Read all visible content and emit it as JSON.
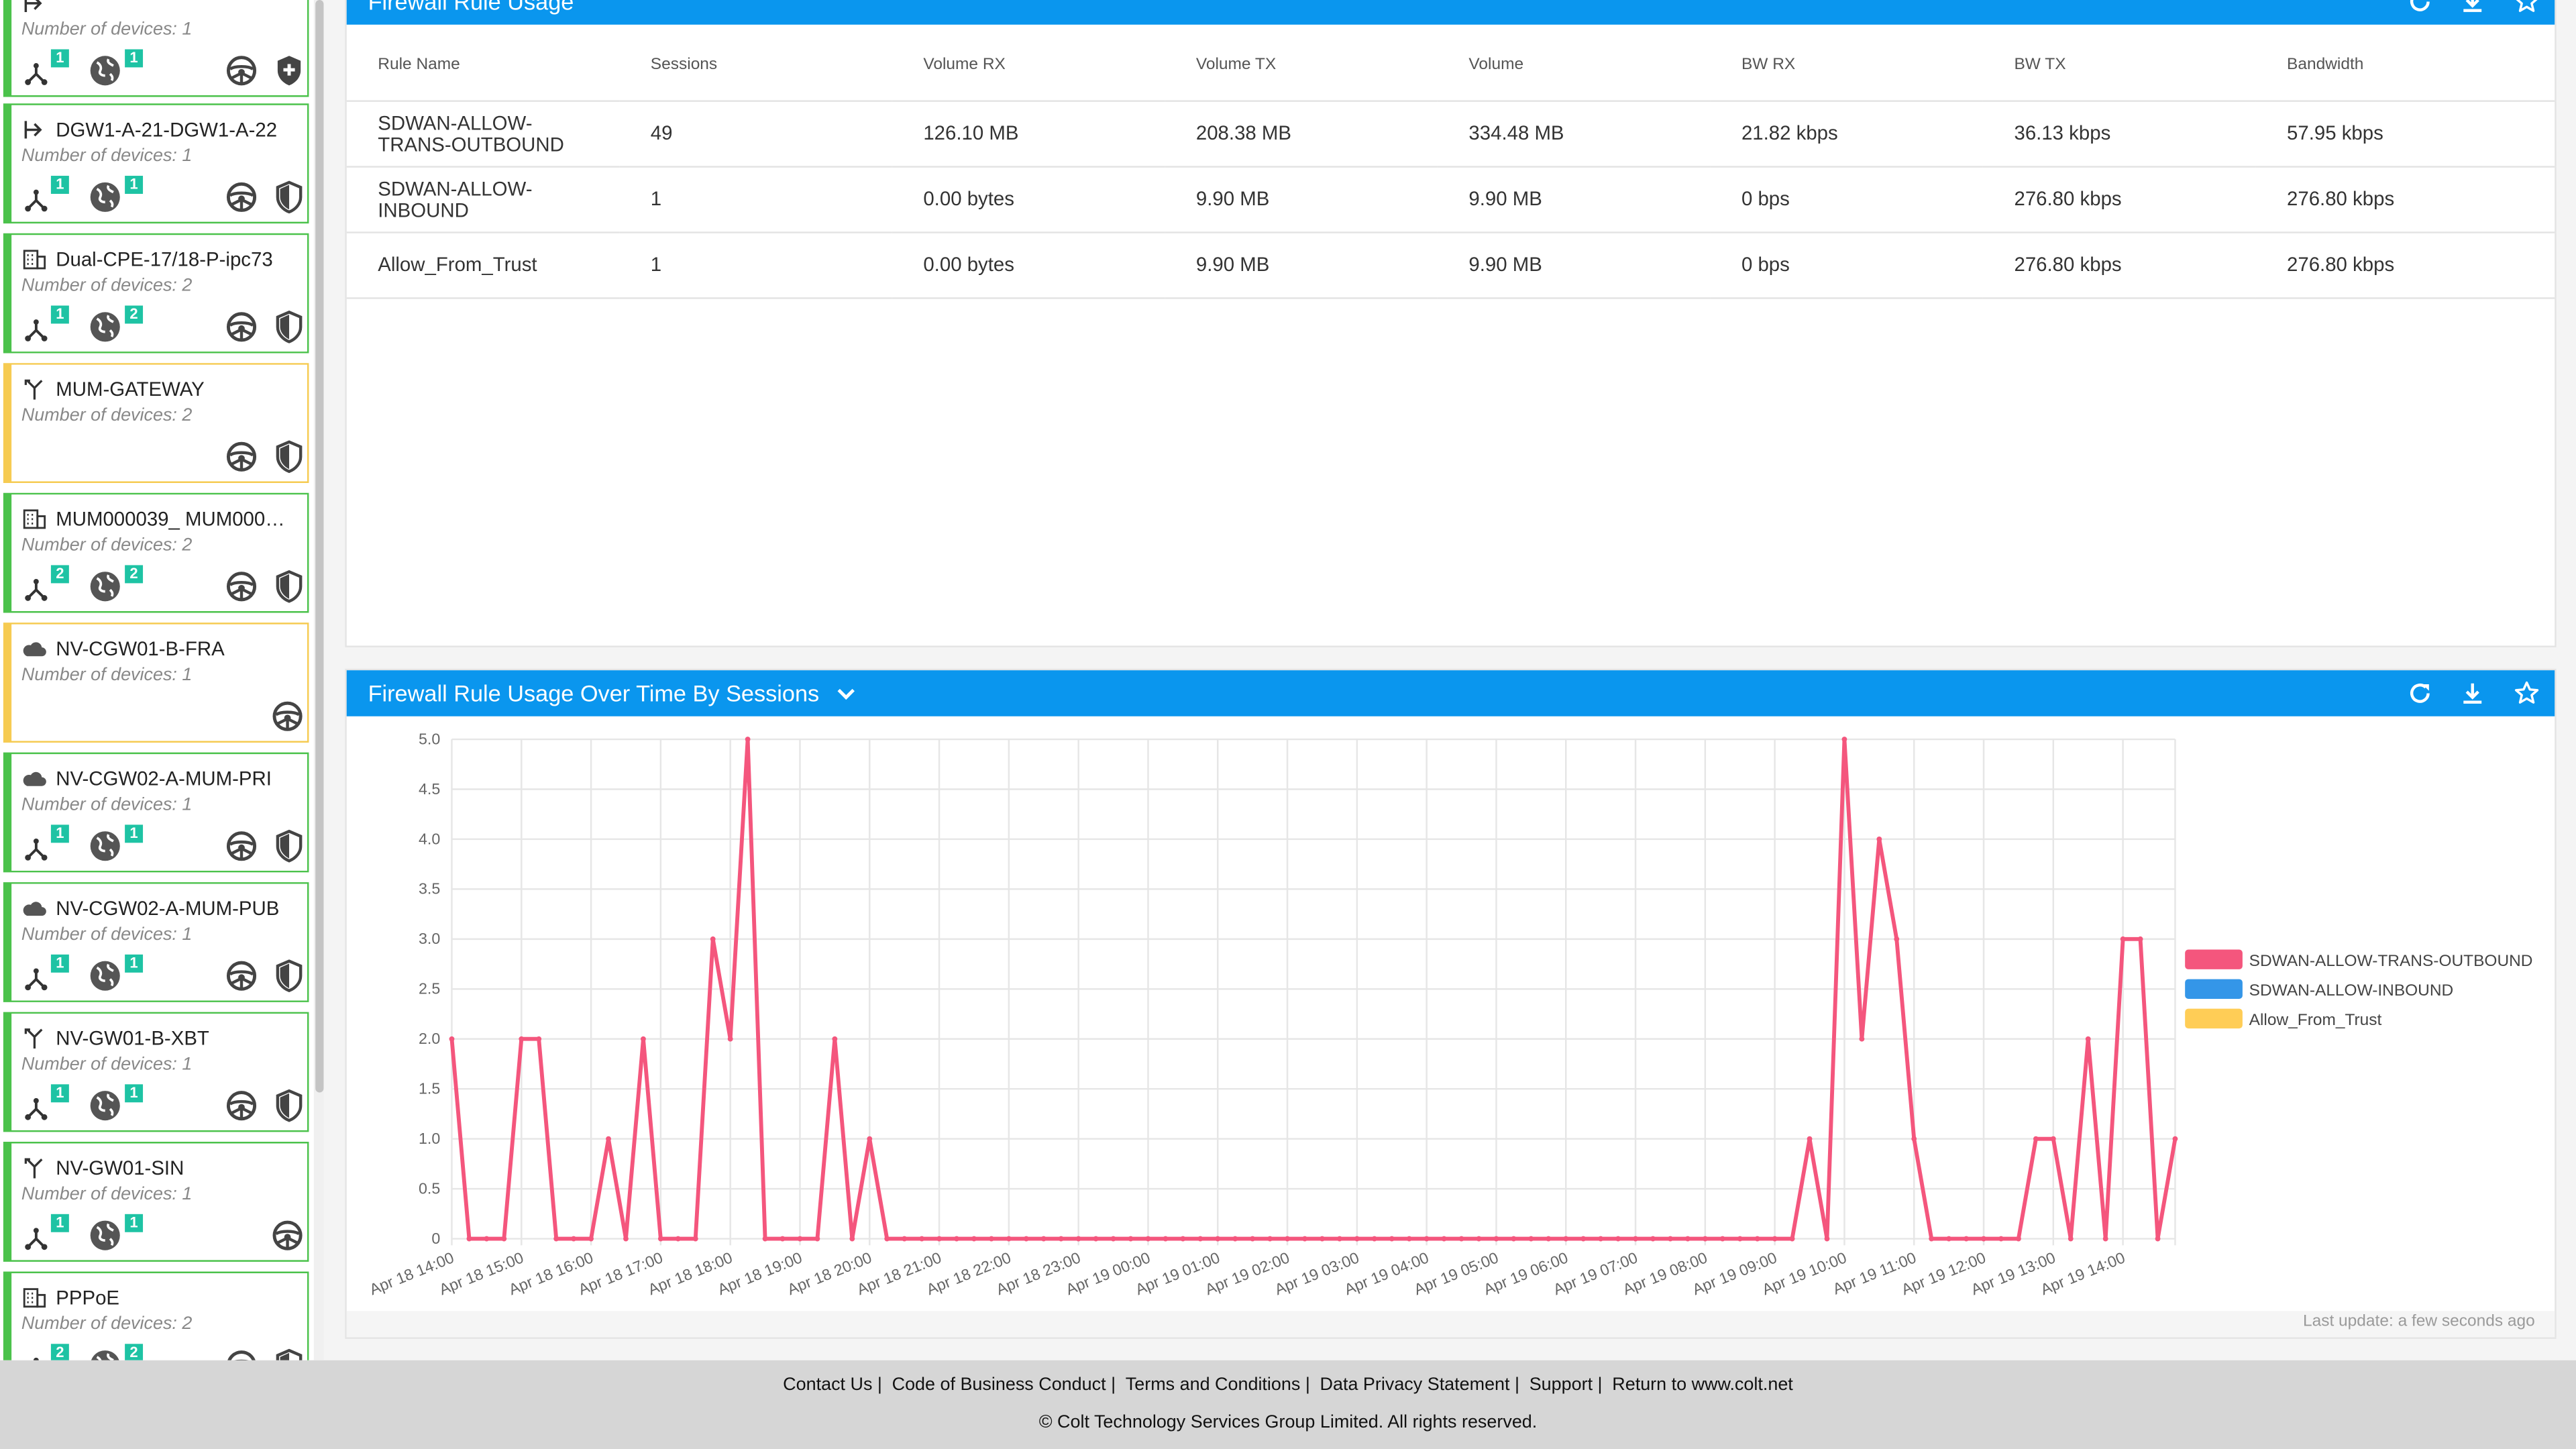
{
  "sidebar": {
    "cards": [
      {
        "title": "",
        "devices": "Number of devices: 1",
        "type": "gateway",
        "status": "green",
        "badges": [
          "1",
          "1"
        ],
        "end_icons": [
          "steering-wheel-icon",
          "shield-plus-icon"
        ]
      },
      {
        "title": "DGW1-A-21-DGW1-A-22",
        "devices": "Number of devices: 1",
        "type": "gateway-arrow",
        "status": "green",
        "badges": [
          "1",
          "1"
        ],
        "end_icons": [
          "steering-wheel-icon",
          "shield-icon"
        ]
      },
      {
        "title": "Dual-CPE-17/18-P-ipc73",
        "devices": "Number of devices: 2",
        "type": "building",
        "status": "green",
        "badges": [
          "1",
          "2"
        ],
        "end_icons": [
          "steering-wheel-icon",
          "shield-icon"
        ]
      },
      {
        "title": "MUM-GATEWAY",
        "devices": "Number of devices: 2",
        "type": "merge",
        "status": "yellow",
        "badges": [],
        "end_icons": [
          "steering-wheel-icon",
          "shield-icon"
        ]
      },
      {
        "title": "MUM000039_ MUM000…",
        "devices": "Number of devices: 2",
        "type": "building",
        "status": "green",
        "badges": [
          "2",
          "2"
        ],
        "end_icons": [
          "steering-wheel-icon",
          "shield-icon"
        ]
      },
      {
        "title": "NV-CGW01-B-FRA",
        "devices": "Number of devices: 1",
        "type": "cloud",
        "status": "yellow",
        "badges": [],
        "end_icons": [
          "steering-wheel-icon"
        ]
      },
      {
        "title": "NV-CGW02-A-MUM-PRI",
        "devices": "Number of devices: 1",
        "type": "cloud",
        "status": "green",
        "badges": [
          "1",
          "1"
        ],
        "end_icons": [
          "steering-wheel-icon",
          "shield-icon"
        ]
      },
      {
        "title": "NV-CGW02-A-MUM-PUB",
        "devices": "Number of devices: 1",
        "type": "cloud",
        "status": "green",
        "badges": [
          "1",
          "1"
        ],
        "end_icons": [
          "steering-wheel-icon",
          "shield-icon"
        ]
      },
      {
        "title": "NV-GW01-B-XBT",
        "devices": "Number of devices: 1",
        "type": "merge",
        "status": "green",
        "badges": [
          "1",
          "1"
        ],
        "end_icons": [
          "steering-wheel-icon",
          "shield-icon"
        ]
      },
      {
        "title": "NV-GW01-SIN",
        "devices": "Number of devices: 1",
        "type": "merge",
        "status": "green",
        "badges": [
          "1",
          "1"
        ],
        "end_icons": [
          "steering-wheel-icon"
        ]
      },
      {
        "title": "PPPoE",
        "devices": "Number of devices: 2",
        "type": "building",
        "status": "green",
        "badges": [
          "2",
          "2"
        ],
        "end_icons": [
          "steering-wheel-icon",
          "shield-icon"
        ]
      }
    ]
  },
  "usage_panel": {
    "title": "Firewall Rule Usage",
    "columns": [
      "Rule Name",
      "Sessions",
      "Volume RX",
      "Volume TX",
      "Volume",
      "BW RX",
      "BW TX",
      "Bandwidth"
    ],
    "rows": [
      [
        "SDWAN-ALLOW-\nTRANS-OUTBOUND",
        "49",
        "126.10 MB",
        "208.38 MB",
        "334.48 MB",
        "21.82 kbps",
        "36.13 kbps",
        "57.95 kbps"
      ],
      [
        "SDWAN-ALLOW-\nINBOUND",
        "1",
        "0.00 bytes",
        "9.90 MB",
        "9.90 MB",
        "0 bps",
        "276.80 kbps",
        "276.80 kbps"
      ],
      [
        "Allow_From_Trust",
        "1",
        "0.00 bytes",
        "9.90 MB",
        "9.90 MB",
        "0 bps",
        "276.80 kbps",
        "276.80 kbps"
      ]
    ]
  },
  "chart_panel": {
    "title": "Firewall Rule Usage Over Time By Sessions",
    "last_update": "Last update: a few seconds ago"
  },
  "chart_data": {
    "type": "line",
    "title": "Firewall Rule Usage Over Time By Sessions",
    "xlabel": "",
    "ylabel": "",
    "ylim": [
      0,
      5
    ],
    "y_ticks": [
      "0",
      "0.5",
      "1.0",
      "1.5",
      "2.0",
      "2.5",
      "3.0",
      "3.5",
      "4.0",
      "4.5",
      "5.0"
    ],
    "x_tick_labels": [
      "Apr 18 14:00",
      "Apr 18 15:00",
      "Apr 18 16:00",
      "Apr 18 17:00",
      "Apr 18 18:00",
      "Apr 18 19:00",
      "Apr 18 20:00",
      "Apr 18 21:00",
      "Apr 18 22:00",
      "Apr 18 23:00",
      "Apr 19 00:00",
      "Apr 19 01:00",
      "Apr 19 02:00",
      "Apr 19 03:00",
      "Apr 19 04:00",
      "Apr 19 05:00",
      "Apr 19 06:00",
      "Apr 19 07:00",
      "Apr 19 08:00",
      "Apr 19 09:00",
      "Apr 19 10:00",
      "Apr 19 11:00",
      "Apr 19 12:00",
      "Apr 19 13:00",
      "Apr 19 14:00"
    ],
    "x_interval_minutes": 15,
    "grid": true,
    "legend_position": "right",
    "series": [
      {
        "name": "SDWAN-ALLOW-TRANS-OUTBOUND",
        "color": "#f4567d",
        "values": [
          2,
          0,
          0,
          0,
          2,
          2,
          0,
          0,
          0,
          1,
          0,
          2,
          0,
          0,
          0,
          3,
          2,
          5,
          0,
          0,
          0,
          0,
          2,
          0,
          1,
          0,
          0,
          0,
          0,
          0,
          0,
          0,
          0,
          0,
          0,
          0,
          0,
          0,
          0,
          0,
          0,
          0,
          0,
          0,
          0,
          0,
          0,
          0,
          0,
          0,
          0,
          0,
          0,
          0,
          0,
          0,
          0,
          0,
          0,
          0,
          0,
          0,
          0,
          0,
          0,
          0,
          0,
          0,
          0,
          0,
          0,
          0,
          0,
          0,
          0,
          0,
          0,
          0,
          1,
          0,
          5,
          2,
          4,
          3,
          1,
          0,
          0,
          0,
          0,
          0,
          0,
          1,
          1,
          0,
          2,
          0,
          3,
          3,
          0,
          1
        ]
      },
      {
        "name": "SDWAN-ALLOW-INBOUND",
        "color": "#3496e8",
        "values": []
      },
      {
        "name": "Allow_From_Trust",
        "color": "#ffcd56",
        "values": []
      }
    ]
  },
  "footer": {
    "links": [
      "Contact Us |",
      "Code of Business Conduct |",
      "Terms and Conditions |",
      "Data Privacy Statement |",
      "Support |",
      "Return to www.colt.net"
    ],
    "copyright": "© Colt Technology Services Group Limited. All rights reserved."
  }
}
